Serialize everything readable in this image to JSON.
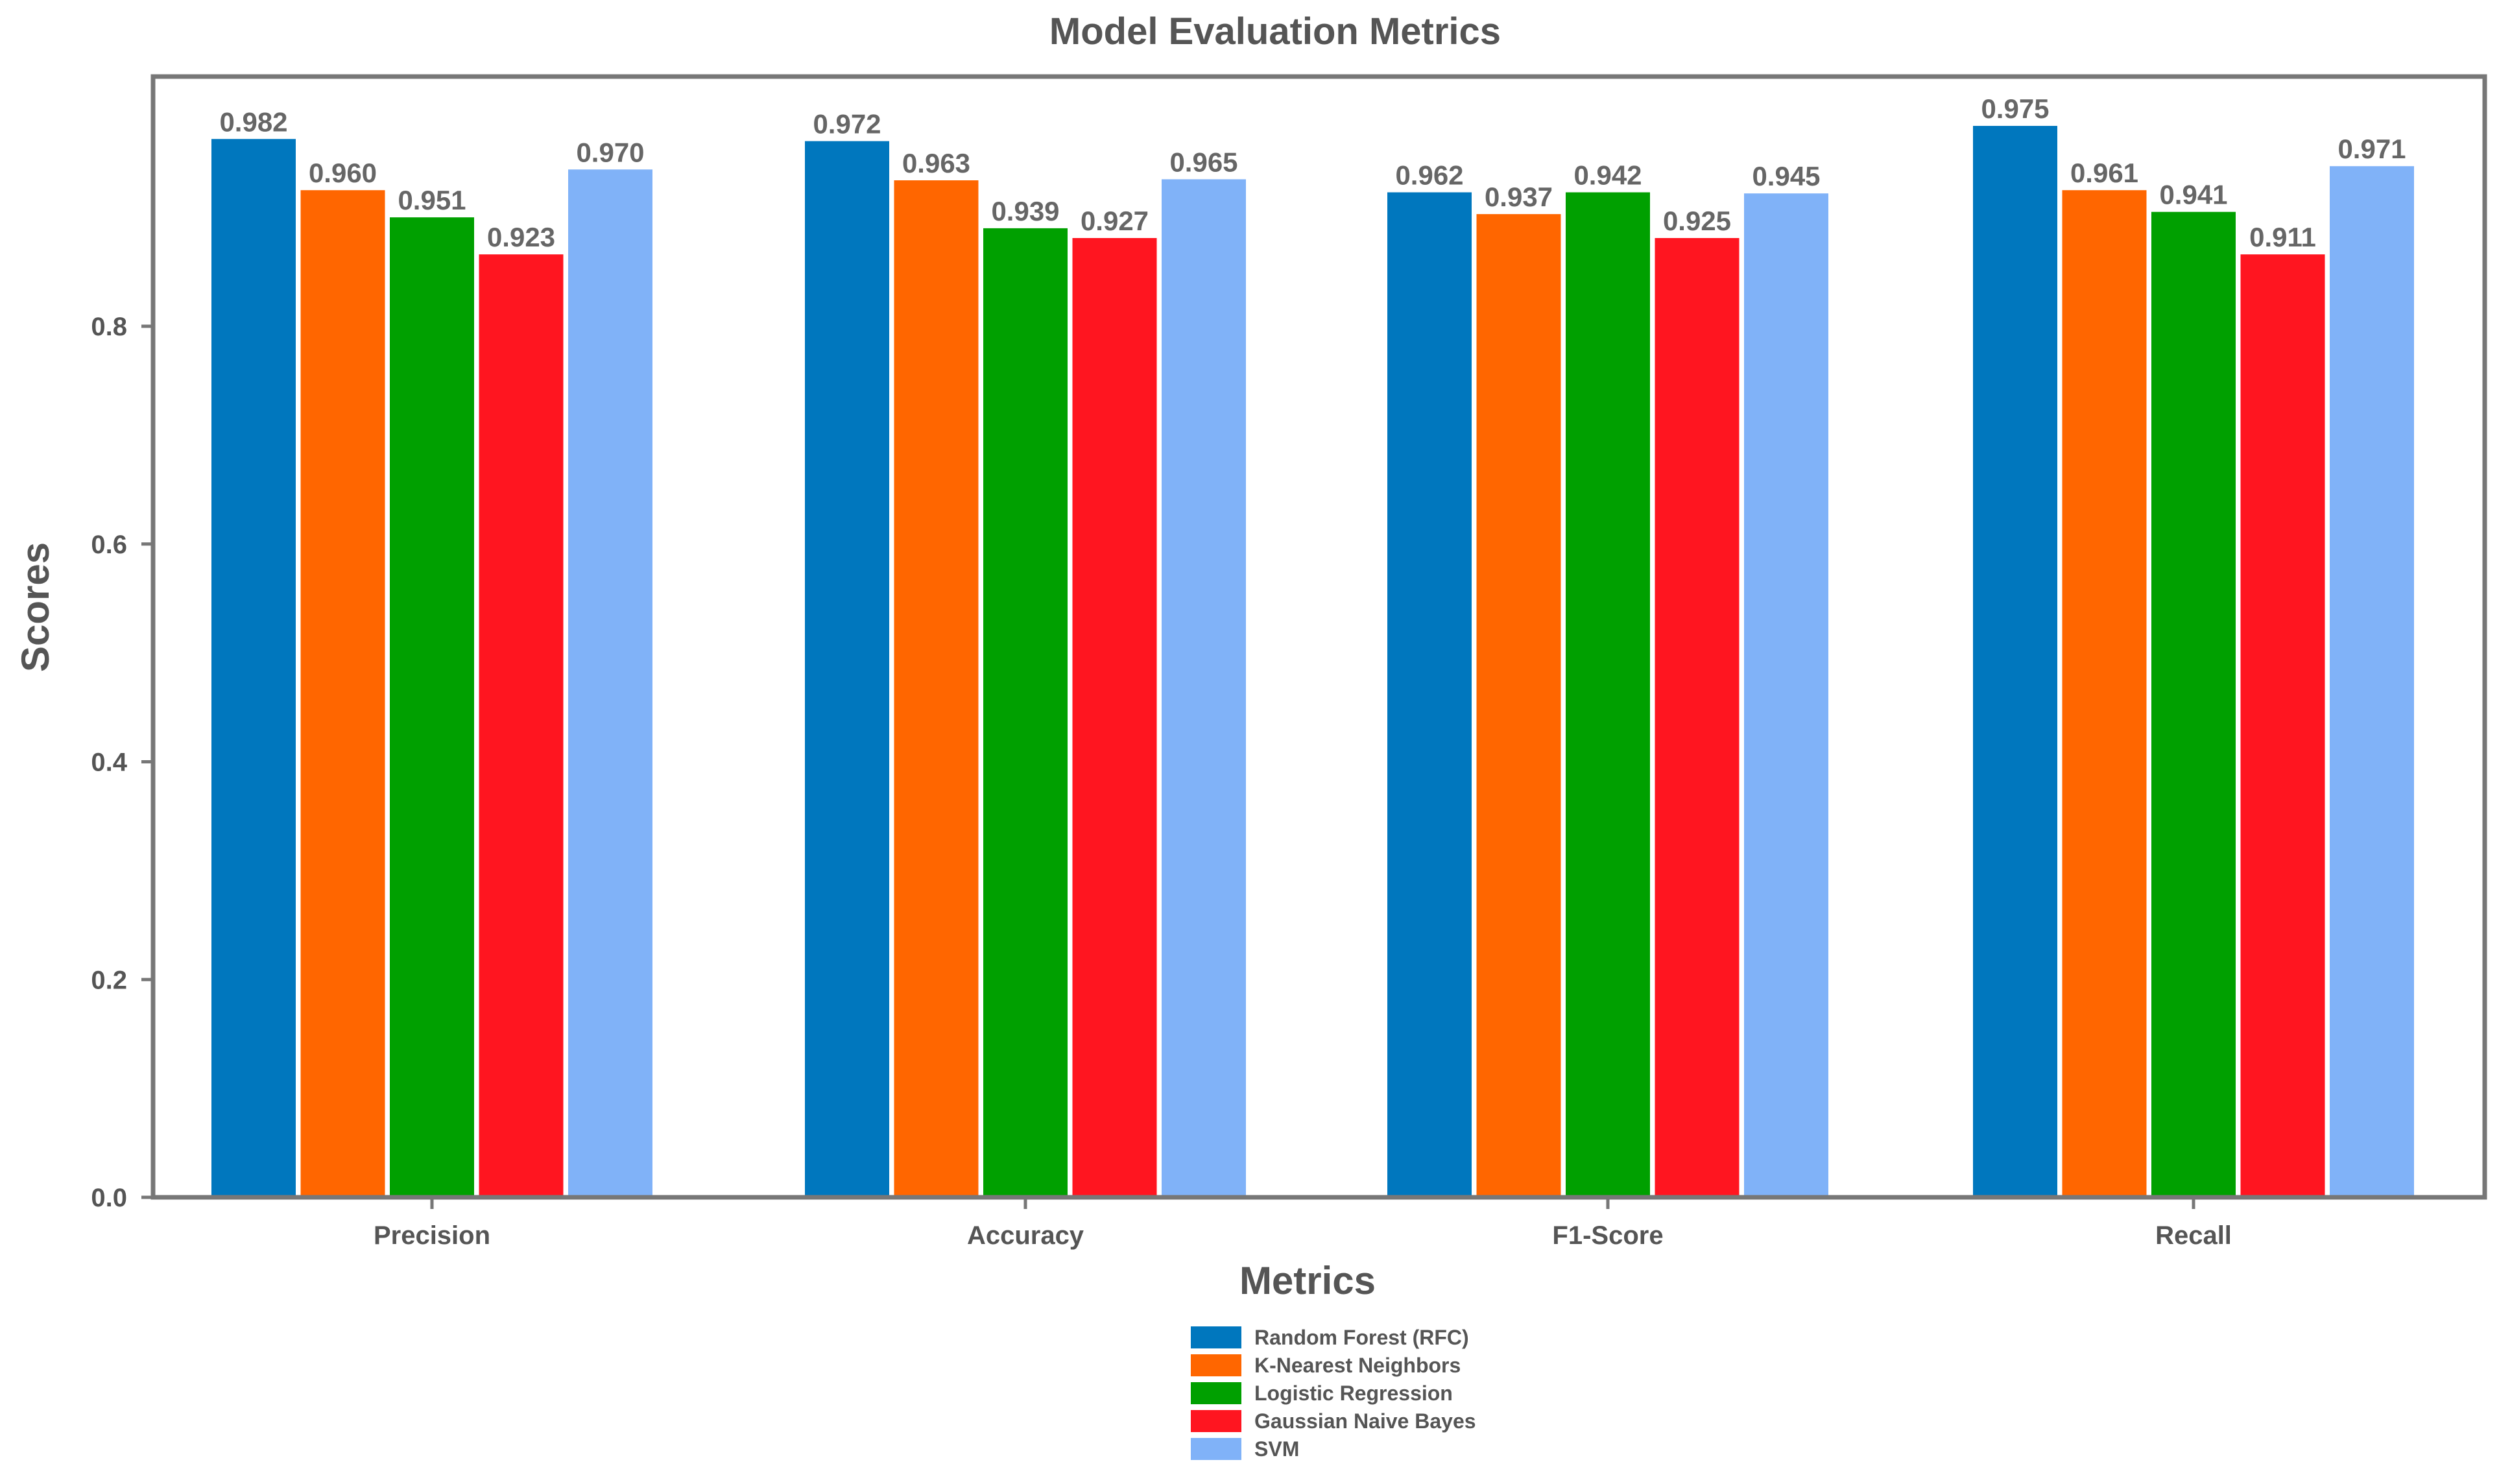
{
  "chart_data": {
    "type": "bar",
    "title": "Model Evaluation Metrics",
    "xlabel": "Metrics",
    "ylabel": "Scores",
    "categories": [
      "Precision",
      "Accuracy",
      "F1-Score",
      "Recall"
    ],
    "ylim": [
      0,
      1.0
    ],
    "yticks": [
      0.0,
      0.2,
      0.4,
      0.6,
      0.8
    ],
    "ytick_labels": [
      "0.0",
      "0.2",
      "0.4",
      "0.6",
      "0.8"
    ],
    "grid": false,
    "legend_position": "bottom-center",
    "series": [
      {
        "name": "Random Forest (RFC)",
        "color": "#0077be",
        "values": [
          0.982,
          0.972,
          0.962,
          0.975
        ],
        "bar_heights": [
          0.972,
          0.97,
          0.923,
          0.984
        ],
        "labels": [
          "0.982",
          "0.972",
          "0.962",
          "0.975"
        ]
      },
      {
        "name": "K-Nearest Neighbors",
        "color": "#ff6600",
        "values": [
          0.96,
          0.963,
          0.937,
          0.961
        ],
        "bar_heights": [
          0.925,
          0.934,
          0.903,
          0.925
        ],
        "labels": [
          "0.960",
          "0.963",
          "0.937",
          "0.961"
        ]
      },
      {
        "name": "Logistic Regression",
        "color": "#00a000",
        "values": [
          0.951,
          0.939,
          0.942,
          0.941
        ],
        "bar_heights": [
          0.9,
          0.89,
          0.923,
          0.905
        ],
        "labels": [
          "0.951",
          "0.939",
          "0.942",
          "0.941"
        ]
      },
      {
        "name": "Gaussian Naive Bayes",
        "color": "#ff1520",
        "values": [
          0.923,
          0.927,
          0.925,
          0.911
        ],
        "bar_heights": [
          0.866,
          0.881,
          0.881,
          0.866
        ],
        "labels": [
          "0.923",
          "0.927",
          "0.925",
          "0.911"
        ]
      },
      {
        "name": "SVM",
        "color": "#80b2f8",
        "values": [
          0.97,
          0.965,
          0.945,
          0.971
        ],
        "bar_heights": [
          0.944,
          0.935,
          0.922,
          0.947
        ],
        "labels": [
          "0.970",
          "0.965",
          "0.945",
          "0.971"
        ]
      }
    ]
  },
  "colors": {
    "frame": "#777777",
    "text": "#555555",
    "value_text": "#666666",
    "background": "#ffffff"
  }
}
